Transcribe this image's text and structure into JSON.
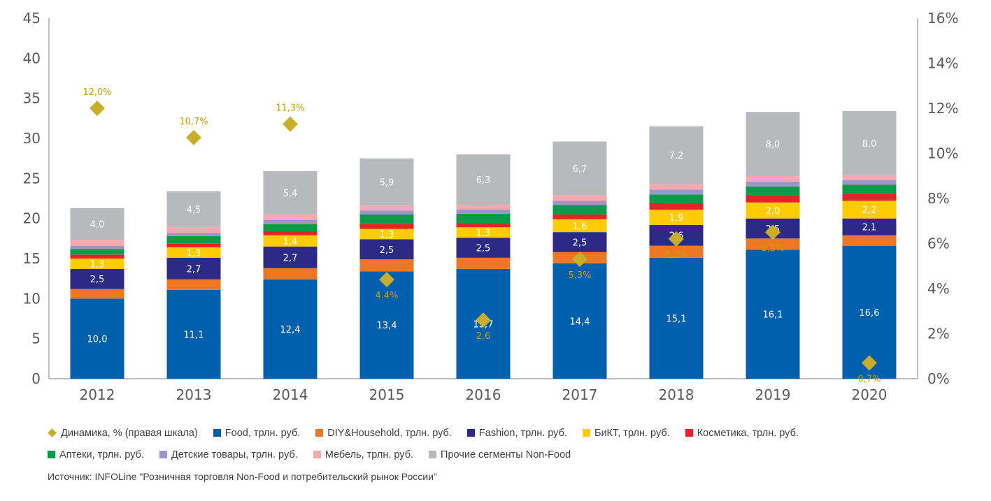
{
  "chart_data": {
    "type": "bar",
    "stacked": true,
    "categories": [
      "2012",
      "2013",
      "2014",
      "2015",
      "2016",
      "2017",
      "2018",
      "2019",
      "2020"
    ],
    "y_left": {
      "range": [
        0,
        45
      ],
      "ticks": [
        "0",
        "5",
        "10",
        "15",
        "20",
        "25",
        "30",
        "35",
        "40",
        "45"
      ]
    },
    "y_right": {
      "range": [
        0,
        16
      ],
      "ticks": [
        "0%",
        "2%",
        "4%",
        "6%",
        "8%",
        "10%",
        "12%",
        "14%",
        "16%"
      ]
    },
    "grid": false,
    "legend_position": "bottom",
    "series": [
      {
        "name": "Food, трлн. руб.",
        "color": "#0060ad",
        "values": [
          10.0,
          11.1,
          12.4,
          13.4,
          13.7,
          14.4,
          15.1,
          16.1,
          16.6
        ],
        "labels": [
          "10,0",
          "11,1",
          "12,4",
          "13,4",
          "13,7",
          "14,4",
          "15,1",
          "16,1",
          "16,6"
        ]
      },
      {
        "name": "DIY&Household, трлн. руб.",
        "color": "#ee7722",
        "values": [
          1.2,
          1.3,
          1.4,
          1.5,
          1.4,
          1.4,
          1.5,
          1.4,
          1.3
        ],
        "labels": [
          "",
          "",
          "",
          "",
          "",
          "",
          "",
          "",
          ""
        ]
      },
      {
        "name": "Fashion, трлн. руб.",
        "color": "#2b2a86",
        "values": [
          2.5,
          2.7,
          2.7,
          2.5,
          2.5,
          2.5,
          2.6,
          2.5,
          2.1
        ],
        "labels": [
          "2,5",
          "2,7",
          "2,7",
          "2,5",
          "2,5",
          "2,5",
          "2,6",
          "2,5",
          "2,1"
        ]
      },
      {
        "name": "БиКТ, трлн. руб.",
        "color": "#ffcc00",
        "values": [
          1.3,
          1.3,
          1.4,
          1.3,
          1.3,
          1.6,
          1.9,
          2.0,
          2.2
        ],
        "labels": [
          "1,3",
          "1,3",
          "1,4",
          "1,3",
          "1,3",
          "1,6",
          "1,9",
          "2,0",
          "2,2"
        ]
      },
      {
        "name": "Косметика, трлн. руб.",
        "color": "#e8212a",
        "values": [
          0.5,
          0.5,
          0.5,
          0.6,
          0.5,
          0.6,
          0.8,
          0.9,
          0.9
        ],
        "labels": [
          "",
          "",
          "",
          "",
          "",
          "",
          "",
          "",
          ""
        ]
      },
      {
        "name": "Аптеки, трлн. руб.",
        "color": "#0a9a48",
        "values": [
          0.7,
          0.9,
          0.9,
          1.2,
          1.2,
          1.2,
          1.1,
          1.1,
          1.1
        ],
        "labels": [
          "",
          "",
          "",
          "",
          "",
          "",
          "",
          "",
          ""
        ]
      },
      {
        "name": "Детские товары, трлн. руб.",
        "color": "#9b95c9",
        "values": [
          0.4,
          0.4,
          0.5,
          0.5,
          0.5,
          0.5,
          0.6,
          0.6,
          0.6
        ],
        "labels": [
          "",
          "",
          "",
          "",
          "",
          "",
          "",
          "",
          ""
        ]
      },
      {
        "name": "Мебель, трлн. руб.",
        "color": "#f4a9b0",
        "values": [
          0.7,
          0.7,
          0.7,
          0.6,
          0.6,
          0.7,
          0.7,
          0.7,
          0.6
        ],
        "labels": [
          "",
          "",
          "",
          "",
          "",
          "",
          "",
          "",
          ""
        ]
      },
      {
        "name": "Прочие сегменты Non-Food",
        "color": "#b8b9bc",
        "values": [
          4.0,
          4.5,
          5.4,
          5.9,
          6.3,
          6.7,
          7.2,
          8.0,
          8.0
        ],
        "labels": [
          "4,0",
          "4,5",
          "5,4",
          "5,9",
          "6,3",
          "6,7",
          "7,2",
          "8,0",
          "8,0"
        ]
      }
    ],
    "dynamics": {
      "name": "Динамика, % (правая шкала)",
      "color": "#c8ae2a",
      "axis": "right",
      "values": [
        12.0,
        10.7,
        11.3,
        4.4,
        2.6,
        5.3,
        6.2,
        6.5,
        0.7
      ],
      "labels": [
        "12,0%",
        "10,7%",
        "11,3%",
        "4.4%",
        "2,6",
        "5,3%",
        "6,2%",
        "6,5%",
        "0,7%"
      ]
    }
  },
  "source": "Источник:  INFOLine \"Розничная торговля Non-Food и потребительский рынок России\""
}
